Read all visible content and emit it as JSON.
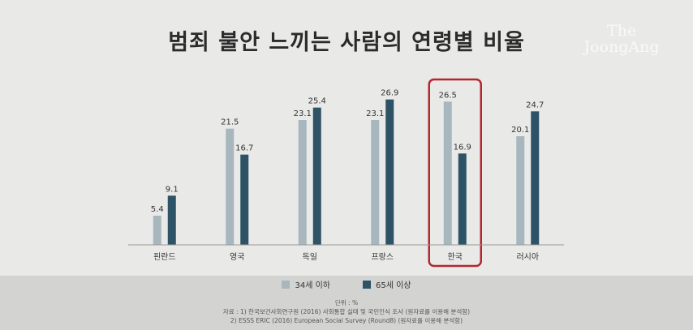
{
  "chart_data": {
    "type": "bar",
    "title": "범죄 불안 느끼는 사람의 연령별 비율",
    "categories": [
      "핀란드",
      "영국",
      "독일",
      "프랑스",
      "한국",
      "러시아"
    ],
    "series": [
      {
        "name": "34세 이하",
        "values": [
          5.4,
          21.5,
          23.1,
          23.1,
          26.5,
          20.1
        ],
        "color": "#a8b7be"
      },
      {
        "name": "65세 이상",
        "values": [
          9.1,
          16.7,
          25.4,
          26.9,
          16.9,
          24.7
        ],
        "color": "#2e5266"
      }
    ],
    "value_labels": [
      [
        "5.4",
        "21.5",
        "23.1",
        "23.1",
        "26.5",
        "20.1"
      ],
      [
        "9.1",
        "16.7",
        "25.4",
        "26.9",
        "16.9",
        "24.7"
      ]
    ],
    "ylim": [
      0,
      30
    ],
    "highlight_category": "한국",
    "highlight_color": "#b5262e",
    "legend_position": "bottom",
    "grid": false
  },
  "unit_note": "단위 : %",
  "source_lines": [
    "자료 : 1) 한국보건사회연구원 (2016) 사회통합 실태 및 국민인식 조사 (원자료를 이용해 분석함)",
    "2) ESSS ERIC (2016) European Social Survey (Round8) (원자료를 이용해 분석함)"
  ],
  "watermark": [
    "The",
    "JoongAng"
  ]
}
